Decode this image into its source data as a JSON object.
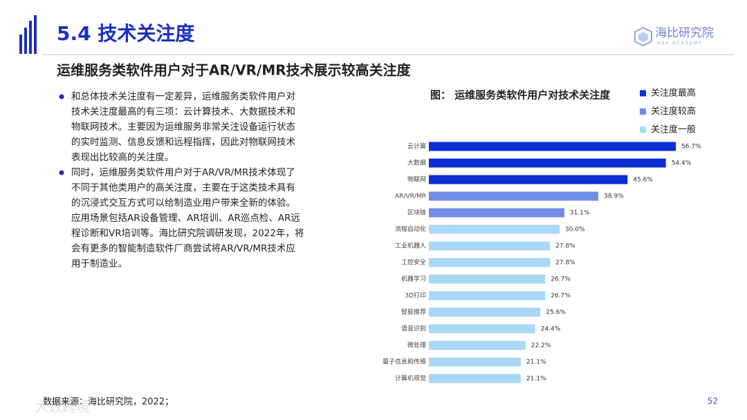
{
  "header": {
    "title": "5.4 技术关注度",
    "logo": "海比研究院",
    "logo_sub": "HAP ACADEMY"
  },
  "subtitle": "运维服务类软件用户对于AR/VR/MR技术展示较高关注度",
  "bullets": [
    [
      "和总体技术关注度有一定差异，运维服务类软件用户对",
      "技术关注度最高的有三项：云计算技术、大数据技术和",
      "物联网技术。主要因为运维服务非常关注设备运行状态",
      "的实时监测、信息反馈和远程指挥，因此对物联网技术",
      "表现出比较高的关注度。"
    ],
    [
      "同时，运维服务类软件用户对于AR/VR/MR技术体现了",
      "不同于其他类用户的高关注度，主要在于这类技术具有",
      "的沉浸式交互方式可以给制造业用户带来全新的体验。",
      "应用场景包括AR设备管理、AR培训、AR巡点检、AR远",
      "程诊断和VR培训等。海比研究院调研发现，2022年，将",
      "会有更多的智能制造软件厂商尝试将AR/VR/MR技术应",
      "用于制造业。"
    ]
  ],
  "source": "数据来源：海比研究院，2022；",
  "page_number": "52",
  "watermark": "大数跨境",
  "chart_data": {
    "type": "bar",
    "orientation": "horizontal",
    "title": "图：  运维服务类软件用户对技术关注度",
    "categories": [
      "云计算",
      "大数据",
      "物联网",
      "AR/VR/MR",
      "区块链",
      "流程自动化",
      "工业机器人",
      "工控安全",
      "机器学习",
      "3D打印",
      "智能推荐",
      "语音识别",
      "微处理",
      "量子信息和传感",
      "计算机视觉"
    ],
    "series": [
      {
        "name": "关注度最高",
        "color": "#0b2fd3",
        "values": [
          56.7,
          54.4,
          45.6,
          null,
          null,
          null,
          null,
          null,
          null,
          null,
          null,
          null,
          null,
          null,
          null
        ],
        "value_labels": [
          "56.7%",
          "54.4%",
          "45.6%",
          null,
          null,
          null,
          null,
          null,
          null,
          null,
          null,
          null,
          null,
          null,
          null
        ]
      },
      {
        "name": "关注度较高",
        "color": "#6f8ce6",
        "values": [
          null,
          null,
          null,
          38.9,
          31.1,
          null,
          null,
          null,
          null,
          null,
          null,
          null,
          null,
          null,
          null
        ],
        "value_labels": [
          null,
          null,
          null,
          "38.9%",
          "31.1%",
          null,
          null,
          null,
          null,
          null,
          null,
          null,
          null,
          null,
          null
        ]
      },
      {
        "name": "关注度一般",
        "color": "#a8d8f6",
        "values": [
          null,
          null,
          null,
          null,
          null,
          30.0,
          27.8,
          27.8,
          26.7,
          26.7,
          25.6,
          24.4,
          22.2,
          21.1,
          21.1
        ],
        "value_labels": [
          null,
          null,
          null,
          null,
          null,
          "30.0%",
          "27.8%",
          "27.8%",
          "26.7%",
          "26.7%",
          "25.6%",
          "24.4%",
          "22.2%",
          "21.1%",
          "21.1%"
        ]
      }
    ]
  }
}
